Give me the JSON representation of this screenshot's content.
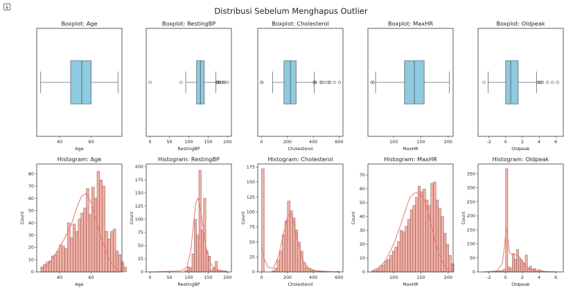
{
  "figure": {
    "suptitle": "Distribusi Sebelum Menghapus Outlier",
    "toolbar_icon": "output-scroll-icon"
  },
  "colors": {
    "box_fill": "#8ecae0",
    "box_edge": "#5b6a73",
    "hist_fill": "#f4aea4",
    "hist_edge": "#5a3d39",
    "kde_line": "#e9766a",
    "axes": "#333333"
  },
  "chart_data": [
    {
      "type": "box",
      "title": "Boxplot: Age",
      "xlabel": "Age",
      "xlim": [
        25.5,
        79.5
      ],
      "xticks": [
        40,
        60
      ],
      "stats": {
        "whisker_low": 28,
        "q1": 47,
        "median": 54,
        "q3": 60,
        "whisker_high": 77
      },
      "outliers": []
    },
    {
      "type": "box",
      "title": "Boxplot: RestingBP",
      "xlabel": "RestingBP",
      "xlim": [
        -10,
        210
      ],
      "xticks": [
        0,
        50,
        100,
        150,
        200
      ],
      "stats": {
        "whisker_low": 92,
        "q1": 120,
        "median": 130,
        "q3": 140,
        "whisker_high": 170
      },
      "outliers": [
        0,
        80,
        172,
        174,
        175,
        178,
        180,
        185,
        190,
        192,
        200
      ]
    },
    {
      "type": "box",
      "title": "Boxplot: Cholesterol",
      "xlabel": "Cholesterol",
      "xlim": [
        -30,
        630
      ],
      "xticks": [
        0,
        200,
        400,
        600
      ],
      "stats": {
        "whisker_low": 85,
        "q1": 173,
        "median": 223,
        "q3": 267,
        "whisker_high": 407
      },
      "outliers": [
        0,
        2,
        409,
        412,
        417,
        458,
        466,
        491,
        518,
        529,
        564,
        603
      ]
    },
    {
      "type": "box",
      "title": "Boxplot: MaxHR",
      "xlabel": "MaxHR",
      "xlim": [
        53,
        209
      ],
      "xticks": [
        100,
        150,
        200
      ],
      "stats": {
        "whisker_low": 67,
        "q1": 120,
        "median": 138,
        "q3": 156,
        "whisker_high": 202
      },
      "outliers": [
        60,
        63
      ]
    },
    {
      "type": "box",
      "title": "Boxplot: Oldpeak",
      "xlabel": "Oldpeak",
      "xlim": [
        -3.3,
        6.9
      ],
      "xticks": [
        -2,
        0,
        2,
        4,
        6
      ],
      "stats": {
        "whisker_low": -2.1,
        "q1": 0,
        "median": 0.6,
        "q3": 1.5,
        "whisker_high": 3.7
      },
      "outliers": [
        -2.6,
        3.8,
        4.0,
        4.2,
        4.4,
        5.0,
        5.6,
        6.2
      ]
    },
    {
      "type": "histogram",
      "title": "Histogram: Age",
      "xlabel": "Age",
      "ylabel": "Count",
      "xlim": [
        25.5,
        79.5
      ],
      "ylim": [
        0,
        88
      ],
      "xticks": [
        40,
        60
      ],
      "yticks": [
        0,
        10,
        20,
        30,
        40,
        50,
        60,
        70,
        80
      ],
      "bin_start": 28,
      "bin_width": 1.7,
      "counts": [
        4,
        6,
        8,
        9,
        13,
        14,
        17,
        22,
        21,
        19,
        40,
        28,
        39,
        33,
        43,
        48,
        52,
        68,
        47,
        69,
        60,
        82,
        75,
        70,
        33,
        27,
        33,
        35,
        17,
        14,
        8,
        4
      ],
      "kde": [
        [
          28,
          2
        ],
        [
          33,
          6
        ],
        [
          38,
          16
        ],
        [
          43,
          27
        ],
        [
          47,
          37
        ],
        [
          51,
          53
        ],
        [
          54,
          62
        ],
        [
          57,
          64
        ],
        [
          60,
          56
        ],
        [
          63,
          42
        ],
        [
          67,
          25
        ],
        [
          71,
          11
        ],
        [
          75,
          4
        ],
        [
          77,
          2
        ]
      ]
    },
    {
      "type": "histogram",
      "title": "Histogram: RestingBP",
      "xlabel": "RestingBP",
      "ylabel": "Count",
      "xlim": [
        -10,
        210
      ],
      "ylim": [
        0,
        205
      ],
      "xticks": [
        0,
        50,
        100,
        150,
        200
      ],
      "yticks": [
        0,
        25,
        50,
        75,
        100,
        125,
        150,
        175,
        200
      ],
      "bin_start": 90,
      "bin_width": 6,
      "counts": [
        3,
        10,
        8,
        34,
        100,
        70,
        193,
        80,
        140,
        40,
        30,
        4,
        8,
        20,
        3,
        3,
        2,
        2
      ],
      "kde": [
        [
          0,
          0
        ],
        [
          80,
          2
        ],
        [
          95,
          9
        ],
        [
          105,
          40
        ],
        [
          112,
          90
        ],
        [
          118,
          132
        ],
        [
          124,
          140
        ],
        [
          130,
          120
        ],
        [
          138,
          80
        ],
        [
          145,
          45
        ],
        [
          155,
          18
        ],
        [
          165,
          7
        ],
        [
          180,
          3
        ],
        [
          200,
          1
        ]
      ]
    },
    {
      "type": "histogram",
      "title": "Histogram: Cholesterol",
      "xlabel": "Cholesterol",
      "ylabel": "Count",
      "xlim": [
        -30,
        630
      ],
      "ylim": [
        0,
        180
      ],
      "xticks": [
        0,
        200,
        400,
        600
      ],
      "yticks": [
        0,
        25,
        50,
        75,
        100,
        125,
        150,
        175
      ],
      "bin_start": 0,
      "bin_width": 20,
      "counts": [
        172,
        0,
        0,
        0,
        2,
        6,
        20,
        35,
        62,
        85,
        118,
        102,
        90,
        70,
        50,
        35,
        15,
        8,
        5,
        3,
        2,
        2,
        1,
        1,
        1,
        1,
        0,
        0,
        0,
        1
      ],
      "kde": [
        [
          0,
          45
        ],
        [
          20,
          22
        ],
        [
          50,
          8
        ],
        [
          90,
          6
        ],
        [
          130,
          25
        ],
        [
          170,
          65
        ],
        [
          200,
          92
        ],
        [
          225,
          98
        ],
        [
          250,
          82
        ],
        [
          280,
          50
        ],
        [
          320,
          20
        ],
        [
          360,
          7
        ],
        [
          420,
          2
        ],
        [
          500,
          1
        ],
        [
          600,
          0
        ]
      ]
    },
    {
      "type": "histogram",
      "title": "Histogram: MaxHR",
      "xlabel": "MaxHR",
      "ylabel": "Count",
      "xlim": [
        53,
        209
      ],
      "ylim": [
        0,
        78
      ],
      "xticks": [
        100,
        150,
        200
      ],
      "yticks": [
        0,
        10,
        20,
        30,
        40,
        50,
        60,
        70
      ],
      "bin_start": 60,
      "bin_width": 4.7,
      "counts": [
        1,
        1,
        2,
        4,
        5,
        8,
        9,
        12,
        15,
        18,
        22,
        30,
        29,
        33,
        38,
        45,
        48,
        54,
        62,
        58,
        60,
        52,
        48,
        64,
        65,
        52,
        46,
        40,
        28,
        20,
        12,
        6
      ],
      "kde": [
        [
          62,
          1
        ],
        [
          72,
          3
        ],
        [
          85,
          8
        ],
        [
          100,
          20
        ],
        [
          112,
          33
        ],
        [
          122,
          45
        ],
        [
          130,
          54
        ],
        [
          138,
          57
        ],
        [
          145,
          57
        ],
        [
          152,
          55
        ],
        [
          160,
          48
        ],
        [
          170,
          32
        ],
        [
          180,
          16
        ],
        [
          192,
          5
        ],
        [
          202,
          1
        ]
      ]
    },
    {
      "type": "histogram",
      "title": "Histogram: Oldpeak",
      "xlabel": "Oldpeak",
      "ylabel": "Count",
      "xlim": [
        -3.3,
        6.9
      ],
      "ylim": [
        0,
        385
      ],
      "xticks": [
        -2,
        0,
        2,
        4,
        6
      ],
      "yticks": [
        0,
        50,
        100,
        150,
        200,
        250,
        300,
        350
      ],
      "bin_start": -2.6,
      "bin_width": 0.26,
      "counts": [
        1,
        1,
        2,
        2,
        3,
        2,
        3,
        4,
        5,
        10,
        368,
        18,
        14,
        65,
        45,
        80,
        48,
        40,
        30,
        60,
        12,
        20,
        10,
        12,
        5,
        8,
        4,
        3,
        1,
        2,
        1,
        1,
        1,
        1
      ],
      "kde": [
        [
          -2.6,
          0
        ],
        [
          -1.0,
          4
        ],
        [
          -0.4,
          30
        ],
        [
          -0.1,
          100
        ],
        [
          0.05,
          155
        ],
        [
          0.2,
          140
        ],
        [
          0.45,
          70
        ],
        [
          0.8,
          60
        ],
        [
          1.1,
          63
        ],
        [
          1.5,
          58
        ],
        [
          1.9,
          45
        ],
        [
          2.4,
          22
        ],
        [
          3.0,
          10
        ],
        [
          3.8,
          4
        ],
        [
          4.5,
          2
        ],
        [
          5.5,
          1
        ],
        [
          6.2,
          0
        ]
      ]
    }
  ]
}
